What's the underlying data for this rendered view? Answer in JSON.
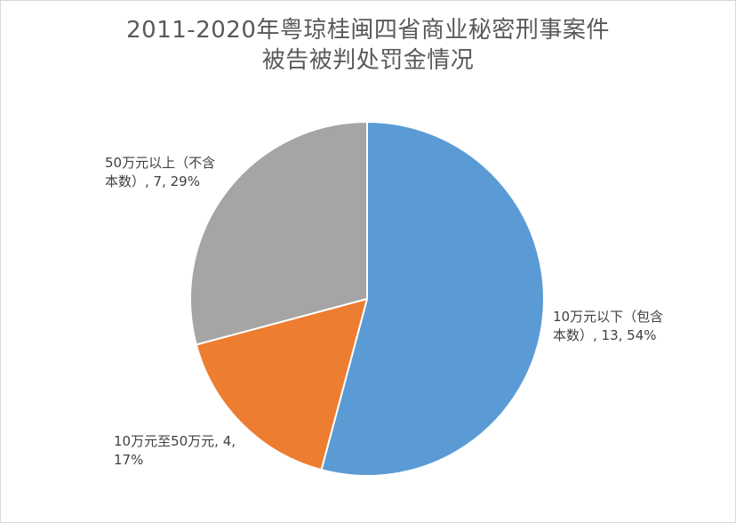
{
  "chart_data": {
    "type": "pie",
    "title_lines": [
      "2011-2020年粤琼桂闽四省商业秘密刑事案件",
      "被告被判处罚金情况"
    ],
    "categories": [
      "10万元以下（包含本数）",
      "10万元至50万元",
      "50万元以上（不含本数）"
    ],
    "values": [
      13,
      4,
      7
    ],
    "percentages": [
      "54%",
      "17%",
      "29%"
    ],
    "colors": [
      "#5b9bd5",
      "#ed7d31",
      "#a5a5a5"
    ],
    "start_angle_deg": 0,
    "direction": "clockwise",
    "data_labels": [
      {
        "line1": "10万元以下（包含",
        "line2": "本数）, 13, 54%"
      },
      {
        "line1": "10万元至50万元, 4,",
        "line2": "17%"
      },
      {
        "line1": "50万元以上（不含",
        "line2": "本数）, 7, 29%"
      }
    ]
  }
}
